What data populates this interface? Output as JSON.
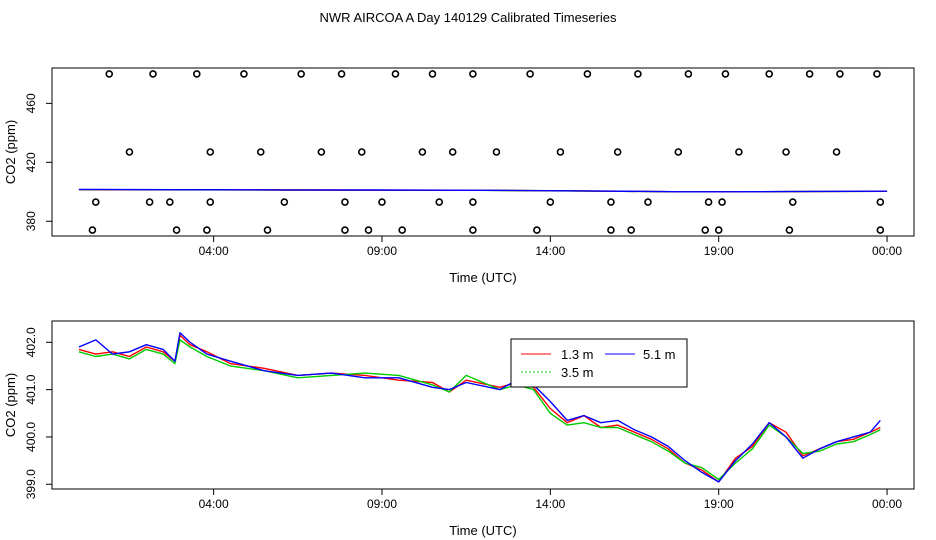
{
  "title": "NWR AIRCOA A  Day 140129  Calibrated Timeseries",
  "chart_data": [
    {
      "type": "scatter",
      "xlabel": "Time (UTC)",
      "ylabel": "CO2 (ppm)",
      "xlim": [
        -0.8,
        24.8
      ],
      "ylim": [
        370,
        484
      ],
      "x_ticks": [
        4,
        9,
        14,
        19,
        24
      ],
      "x_tick_labels": [
        "04:00",
        "09:00",
        "14:00",
        "19:00",
        "00:00"
      ],
      "y_ticks": [
        380,
        420,
        460
      ],
      "y_tick_labels": [
        "380",
        "420",
        "460"
      ],
      "grid": false,
      "points": {
        "x": [
          0.9,
          2.2,
          3.5,
          4.9,
          6.6,
          7.8,
          9.4,
          10.5,
          11.7,
          13.4,
          15.1,
          16.6,
          18.1,
          19.2,
          20.5,
          21.7,
          22.6,
          23.7,
          1.5,
          3.9,
          5.4,
          7.2,
          8.4,
          10.2,
          11.1,
          12.4,
          14.3,
          16.0,
          17.8,
          19.6,
          21.0,
          22.5,
          0.5,
          2.1,
          2.7,
          3.9,
          6.1,
          7.9,
          9.0,
          10.7,
          11.7,
          14.0,
          15.8,
          16.9,
          18.7,
          19.1,
          21.2,
          23.8,
          0.4,
          2.9,
          3.8,
          5.6,
          7.9,
          8.6,
          9.6,
          11.7,
          13.6,
          15.8,
          16.4,
          18.6,
          19.0,
          21.1,
          23.8
        ],
        "y": [
          480,
          480,
          480,
          480,
          480,
          480,
          480,
          480,
          480,
          480,
          480,
          480,
          480,
          480,
          480,
          480,
          480,
          480,
          427,
          427,
          427,
          427,
          427,
          427,
          427,
          427,
          427,
          427,
          427,
          427,
          427,
          427,
          393,
          393,
          393,
          393,
          393,
          393,
          393,
          393,
          393,
          393,
          393,
          393,
          393,
          393,
          393,
          393,
          374,
          374,
          374,
          374,
          374,
          374,
          374,
          374,
          374,
          374,
          374,
          374,
          374,
          374,
          374
        ]
      },
      "series": [
        {
          "name": "3.5 m",
          "color": "#00cc00",
          "x": [
            0,
            3,
            6,
            9,
            12,
            15,
            18,
            21,
            24
          ],
          "y": [
            401.4,
            401.3,
            401.2,
            401.1,
            401.0,
            400.5,
            400.0,
            400.1,
            400.3
          ]
        },
        {
          "name": "1.3 m",
          "color": "#ff0000",
          "x": [
            0,
            3,
            6,
            9,
            12,
            15,
            18,
            21,
            24
          ],
          "y": [
            401.5,
            401.4,
            401.2,
            401.1,
            401.0,
            400.6,
            400.0,
            400.1,
            400.3
          ]
        },
        {
          "name": "5.1 m",
          "color": "#0000ff",
          "x": [
            0,
            3,
            6,
            9,
            12,
            15,
            18,
            21,
            24
          ],
          "y": [
            401.6,
            401.4,
            401.3,
            401.2,
            401.0,
            400.6,
            400.0,
            400.1,
            400.4
          ]
        }
      ]
    },
    {
      "type": "line",
      "xlabel": "Time (UTC)",
      "ylabel": "CO2 (ppm)",
      "xlim": [
        -0.8,
        24.8
      ],
      "ylim": [
        398.9,
        402.45
      ],
      "x_ticks": [
        4,
        9,
        14,
        19,
        24
      ],
      "x_tick_labels": [
        "04:00",
        "09:00",
        "14:00",
        "19:00",
        "00:00"
      ],
      "y_ticks": [
        399.0,
        400.0,
        401.0,
        402.0
      ],
      "y_tick_labels": [
        "399.0",
        "400.0",
        "401.0",
        "402.0"
      ],
      "grid": false,
      "legend": {
        "position": "top-center",
        "entries": [
          "1.3 m",
          "3.5 m",
          "5.1 m"
        ]
      },
      "series": [
        {
          "name": "1.3 m",
          "color": "#ff0000",
          "x": [
            0.0,
            0.5,
            1.0,
            1.5,
            2.0,
            2.5,
            2.85,
            3.0,
            3.3,
            3.8,
            4.5,
            5.5,
            6.5,
            7.5,
            8.5,
            9.5,
            10.5,
            11.0,
            11.5,
            12.5,
            13.0,
            13.5,
            14.0,
            14.5,
            15.0,
            15.5,
            16.0,
            16.5,
            17.0,
            17.5,
            18.0,
            18.5,
            19.0,
            19.5,
            20.0,
            20.5,
            21.0,
            21.5,
            22.0,
            22.5,
            23.0,
            23.5,
            23.8
          ],
          "y": [
            401.85,
            401.75,
            401.8,
            401.7,
            401.9,
            401.8,
            401.6,
            402.15,
            401.95,
            401.8,
            401.55,
            401.45,
            401.3,
            401.35,
            401.3,
            401.2,
            401.15,
            400.95,
            401.2,
            401.05,
            401.15,
            401.05,
            400.6,
            400.3,
            400.45,
            400.2,
            400.25,
            400.1,
            399.95,
            399.75,
            399.45,
            399.3,
            399.05,
            399.55,
            399.8,
            400.3,
            400.1,
            399.6,
            399.75,
            399.9,
            399.95,
            400.1,
            400.2
          ]
        },
        {
          "name": "3.5 m",
          "color": "#00cc00",
          "x": [
            0.0,
            0.5,
            1.0,
            1.5,
            2.0,
            2.5,
            2.85,
            3.0,
            3.3,
            3.8,
            4.5,
            5.5,
            6.5,
            7.5,
            8.5,
            9.5,
            10.5,
            11.0,
            11.5,
            12.5,
            13.0,
            13.5,
            14.0,
            14.5,
            15.0,
            15.5,
            16.0,
            16.5,
            17.0,
            17.5,
            18.0,
            18.5,
            19.0,
            19.5,
            20.0,
            20.5,
            21.0,
            21.5,
            22.0,
            22.5,
            23.0,
            23.5,
            23.8
          ],
          "y": [
            401.8,
            401.7,
            401.75,
            401.65,
            401.85,
            401.75,
            401.55,
            402.05,
            401.9,
            401.7,
            401.5,
            401.4,
            401.25,
            401.3,
            401.35,
            401.3,
            401.1,
            400.95,
            401.3,
            401.0,
            401.1,
            401.0,
            400.5,
            400.25,
            400.3,
            400.2,
            400.2,
            400.05,
            399.9,
            399.7,
            399.45,
            399.35,
            399.1,
            399.45,
            399.75,
            400.25,
            400.0,
            399.65,
            399.7,
            399.85,
            399.9,
            400.05,
            400.15
          ]
        },
        {
          "name": "5.1 m",
          "color": "#0000ff",
          "x": [
            0.0,
            0.5,
            1.0,
            1.5,
            2.0,
            2.5,
            2.85,
            3.0,
            3.3,
            3.8,
            4.5,
            5.5,
            6.5,
            7.5,
            8.5,
            9.5,
            10.5,
            11.0,
            11.5,
            12.5,
            13.0,
            13.5,
            14.0,
            14.5,
            15.0,
            15.5,
            16.0,
            16.5,
            17.0,
            17.5,
            18.0,
            18.5,
            19.0,
            19.5,
            20.0,
            20.5,
            21.0,
            21.5,
            22.0,
            22.5,
            23.0,
            23.5,
            23.8
          ],
          "y": [
            401.9,
            402.05,
            401.75,
            401.8,
            401.95,
            401.85,
            401.6,
            402.2,
            402.0,
            401.75,
            401.6,
            401.4,
            401.3,
            401.35,
            401.25,
            401.25,
            401.05,
            401.0,
            401.15,
            401.0,
            401.2,
            401.1,
            400.75,
            400.35,
            400.45,
            400.3,
            400.35,
            400.15,
            400.0,
            399.8,
            399.5,
            399.25,
            399.05,
            399.5,
            399.85,
            400.3,
            400.0,
            399.55,
            399.75,
            399.9,
            400.0,
            400.1,
            400.35
          ]
        }
      ]
    }
  ]
}
